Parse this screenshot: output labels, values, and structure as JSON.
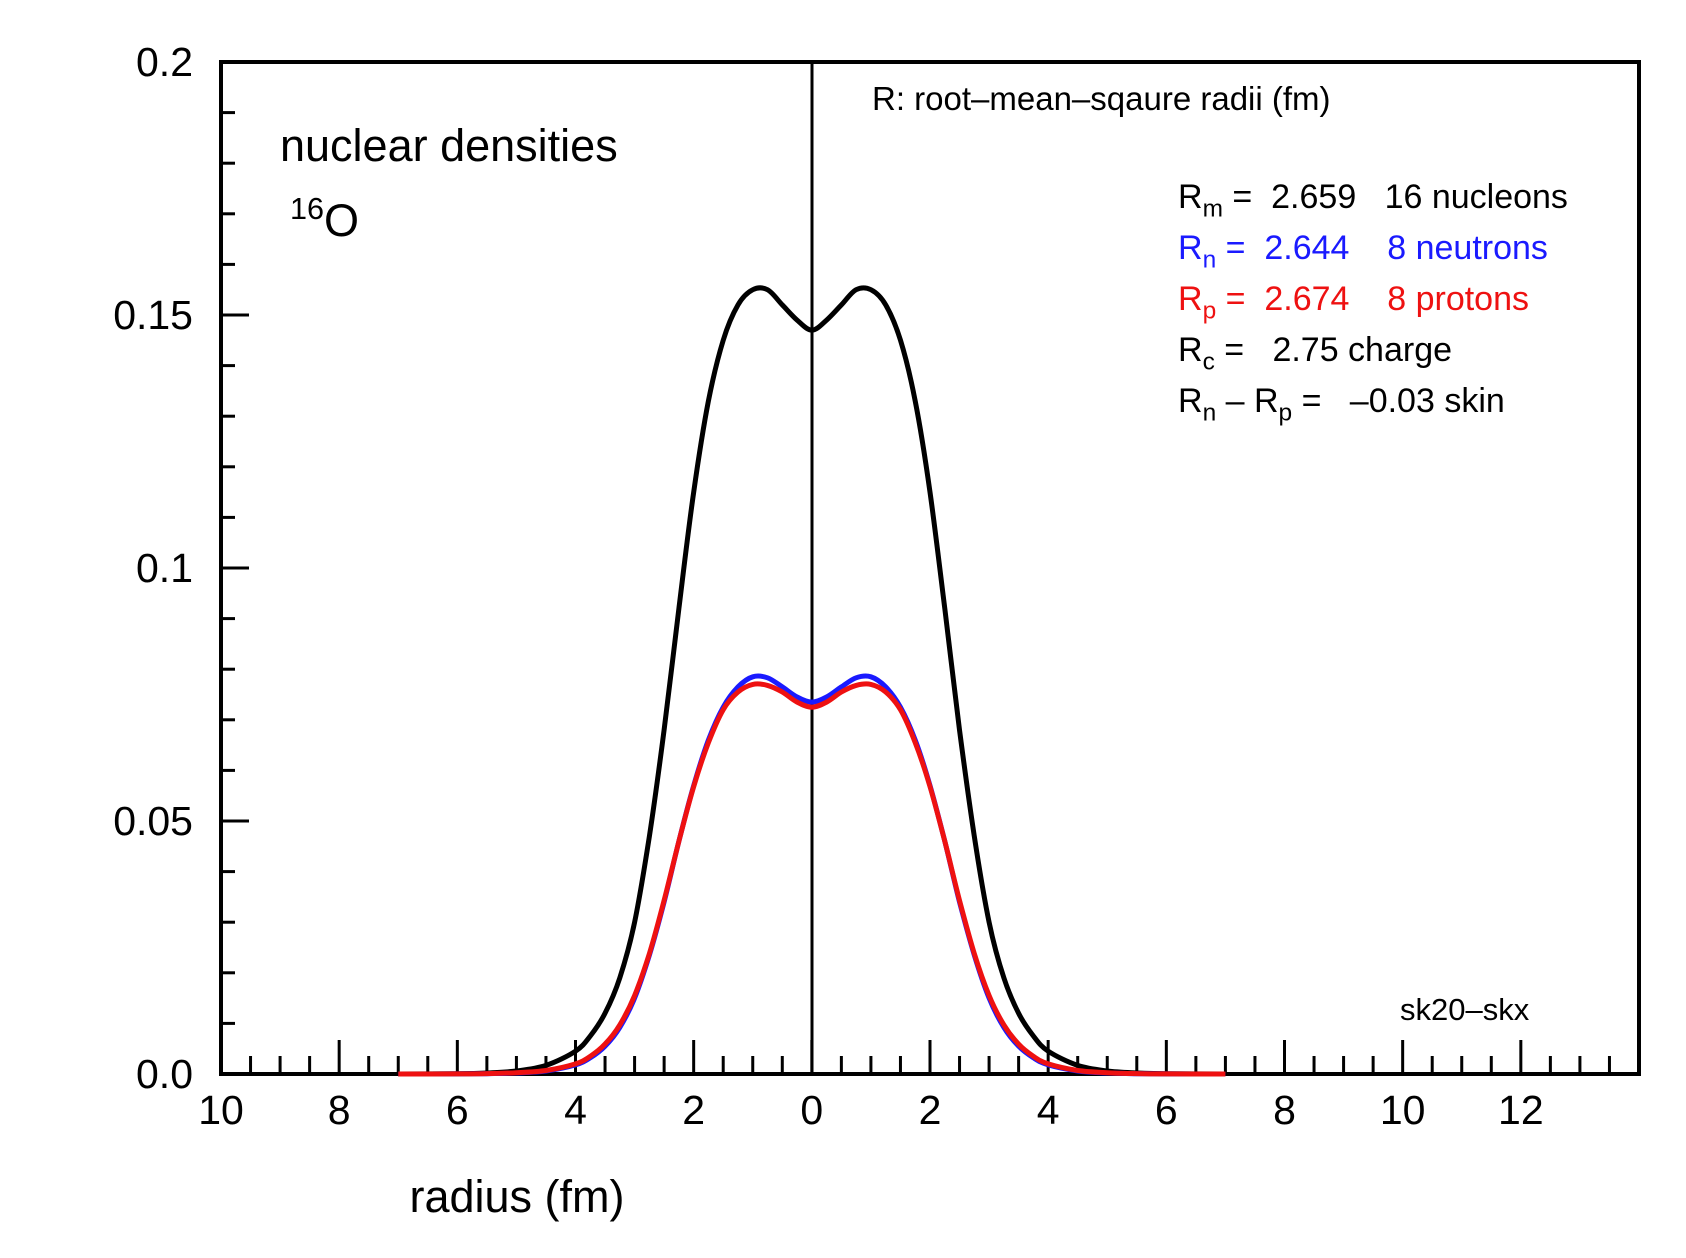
{
  "chart_data": {
    "type": "line",
    "title": "nuclear densities",
    "nucleus": {
      "mass_number": "16",
      "symbol": "O"
    },
    "xlabel": "radius (fm)",
    "ylabel": "",
    "x_tick_labels": [
      "10",
      "8",
      "6",
      "4",
      "2",
      "0",
      "2",
      "4",
      "6",
      "8",
      "10",
      "12"
    ],
    "y_tick_labels": [
      "0.0",
      "0.05",
      "0.1",
      "0.15",
      "0.2"
    ],
    "xlim": [
      -10,
      14
    ],
    "ylim": [
      0,
      0.2
    ],
    "grid": false,
    "legend_header": "R:  root–mean–sqaure radii (fm)",
    "legend": [
      {
        "sym": "R",
        "sub": "m",
        "text": " =  2.659   16 nucleons",
        "color": "#000000"
      },
      {
        "sym": "R",
        "sub": "n",
        "text": " =  2.644    8 neutrons",
        "color": "#1a1aff"
      },
      {
        "sym": "R",
        "sub": "p",
        "text": " =  2.674    8 protons",
        "color": "#ee1111"
      },
      {
        "sym": "R",
        "sub": "c",
        "text": " =   2.75 charge",
        "color": "#000000"
      },
      {
        "sym": "R",
        "sub": "n",
        "text": " – ",
        "sym2": "R",
        "sub2": "p",
        "text2": " =   –0.03 skin",
        "color": "#000000"
      }
    ],
    "footnote": "sk20–skx",
    "series": [
      {
        "name": "16 nucleons",
        "color": "#000000",
        "x": [
          0,
          0.25,
          0.5,
          0.75,
          1.0,
          1.25,
          1.5,
          1.75,
          2.0,
          2.25,
          2.5,
          2.75,
          3.0,
          3.25,
          3.5,
          3.75,
          4.0,
          4.5,
          5.0,
          5.5,
          6.0,
          7.0
        ],
        "y": [
          0.147,
          0.149,
          0.152,
          0.155,
          0.155,
          0.152,
          0.145,
          0.133,
          0.115,
          0.092,
          0.068,
          0.047,
          0.03,
          0.019,
          0.012,
          0.0075,
          0.0045,
          0.0017,
          0.0006,
          0.0002,
          5e-05,
          0
        ]
      },
      {
        "name": "8 neutrons",
        "color": "#1a1aff",
        "x": [
          0,
          0.25,
          0.5,
          0.75,
          1.0,
          1.25,
          1.5,
          1.75,
          2.0,
          2.25,
          2.5,
          2.75,
          3.0,
          3.25,
          3.5,
          3.75,
          4.0,
          4.5,
          5.0,
          5.5,
          6.0,
          7.0
        ],
        "y": [
          0.0735,
          0.0745,
          0.0765,
          0.0783,
          0.0785,
          0.0765,
          0.0725,
          0.066,
          0.057,
          0.046,
          0.034,
          0.0235,
          0.015,
          0.0092,
          0.0055,
          0.0032,
          0.0018,
          0.0006,
          0.0002,
          6e-05,
          2e-05,
          0
        ]
      },
      {
        "name": "8 protons",
        "color": "#ee1111",
        "x": [
          0,
          0.25,
          0.5,
          0.75,
          1.0,
          1.25,
          1.5,
          1.75,
          2.0,
          2.25,
          2.5,
          2.75,
          3.0,
          3.25,
          3.5,
          3.75,
          4.0,
          4.5,
          5.0,
          5.5,
          6.0,
          7.0
        ],
        "y": [
          0.0725,
          0.0735,
          0.0755,
          0.0768,
          0.077,
          0.0755,
          0.072,
          0.0655,
          0.0568,
          0.046,
          0.0343,
          0.0238,
          0.0155,
          0.0097,
          0.0059,
          0.0035,
          0.002,
          0.0007,
          0.00025,
          8e-05,
          2e-05,
          0
        ]
      }
    ]
  }
}
